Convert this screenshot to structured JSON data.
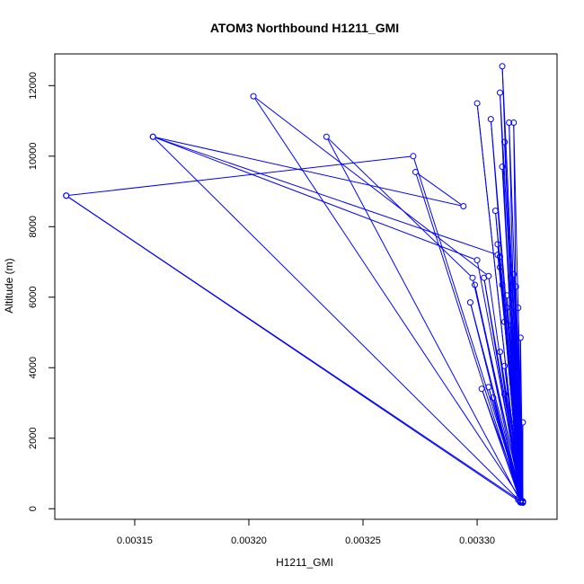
{
  "chart_data": {
    "type": "line",
    "title": "ATOM3 Northbound H1211_GMI",
    "xlabel": "H1211_GMI",
    "ylabel": "Altitude (m)",
    "xlim": [
      0.003115,
      0.003335
    ],
    "ylim": [
      -300,
      12900
    ],
    "x_ticks": [
      0.00315,
      0.0032,
      0.00325,
      0.0033
    ],
    "x_tick_labels": [
      "0.00315",
      "0.00320",
      "0.00325",
      "0.00330"
    ],
    "y_ticks": [
      0,
      2000,
      4000,
      6000,
      8000,
      10000,
      12000
    ],
    "y_tick_labels": [
      "0",
      "2000",
      "4000",
      "6000",
      "8000",
      "10000",
      "12000"
    ],
    "grid": false,
    "legend": "none",
    "series_color": "#0000ff",
    "series": [
      {
        "points": [
          [
            0.00312,
            8880
          ],
          [
            0.003319,
            180
          ],
          [
            0.0033,
            11500
          ],
          [
            0.003319,
            200
          ],
          [
            0.003158,
            10550
          ],
          [
            0.003309,
            7200
          ],
          [
            0.00332,
            190
          ],
          [
            0.003202,
            11700
          ],
          [
            0.003305,
            6600
          ],
          [
            0.003319,
            210
          ],
          [
            0.003234,
            10550
          ],
          [
            0.003298,
            6550
          ],
          [
            0.00332,
            180
          ],
          [
            0.003272,
            10000
          ],
          [
            0.00312,
            8880
          ],
          [
            0.003319,
            220
          ],
          [
            0.003273,
            9550
          ],
          [
            0.003294,
            8580
          ],
          [
            0.003158,
            10550
          ],
          [
            0.0033,
            7050
          ],
          [
            0.00332,
            170
          ],
          [
            0.00331,
            11800
          ],
          [
            0.003318,
            300
          ],
          [
            0.003311,
            12550
          ],
          [
            0.00332,
            190
          ],
          [
            0.003303,
            6550
          ],
          [
            0.003319,
            230
          ],
          [
            0.003306,
            11050
          ],
          [
            0.00332,
            180
          ],
          [
            0.003314,
            10950
          ],
          [
            0.003318,
            250
          ],
          [
            0.003316,
            10950
          ],
          [
            0.00332,
            200
          ],
          [
            0.003312,
            10400
          ],
          [
            0.003319,
            190
          ],
          [
            0.003311,
            9700
          ],
          [
            0.00332,
            180
          ],
          [
            0.003308,
            8450
          ],
          [
            0.003319,
            210
          ],
          [
            0.003309,
            7500
          ],
          [
            0.00332,
            200
          ],
          [
            0.00331,
            6850
          ],
          [
            0.003319,
            180
          ],
          [
            0.003311,
            6350
          ],
          [
            0.00332,
            190
          ],
          [
            0.003313,
            5700
          ],
          [
            0.003319,
            220
          ],
          [
            0.003315,
            5200
          ],
          [
            0.00332,
            190
          ],
          [
            0.003316,
            4700
          ],
          [
            0.003319,
            210
          ],
          [
            0.003317,
            4200
          ],
          [
            0.00332,
            200
          ],
          [
            0.003319,
            4850
          ],
          [
            0.003319,
            180
          ],
          [
            0.003318,
            5700
          ],
          [
            0.00332,
            200
          ],
          [
            0.003317,
            6300
          ],
          [
            0.003319,
            190
          ],
          [
            0.003316,
            6650
          ],
          [
            0.00332,
            180
          ],
          [
            0.003312,
            5300
          ],
          [
            0.003319,
            210
          ],
          [
            0.00331,
            4450
          ],
          [
            0.00332,
            200
          ],
          [
            0.003312,
            4050
          ],
          [
            0.003319,
            190
          ],
          [
            0.003305,
            3450
          ],
          [
            0.00332,
            180
          ],
          [
            0.003302,
            3400
          ],
          [
            0.003319,
            200
          ],
          [
            0.003307,
            3150
          ],
          [
            0.00332,
            210
          ],
          [
            0.003312,
            3250
          ],
          [
            0.003319,
            190
          ],
          [
            0.003315,
            2400
          ],
          [
            0.00332,
            200
          ],
          [
            0.00332,
            2450
          ],
          [
            0.003319,
            180
          ],
          [
            0.003318,
            1200
          ],
          [
            0.00332,
            200
          ],
          [
            0.003313,
            6050
          ],
          [
            0.003319,
            190
          ],
          [
            0.003297,
            5850
          ],
          [
            0.00332,
            200
          ],
          [
            0.003299,
            6350
          ],
          [
            0.003319,
            180
          ],
          [
            0.00331,
            7150
          ],
          [
            0.00332,
            210
          ]
        ]
      }
    ]
  }
}
